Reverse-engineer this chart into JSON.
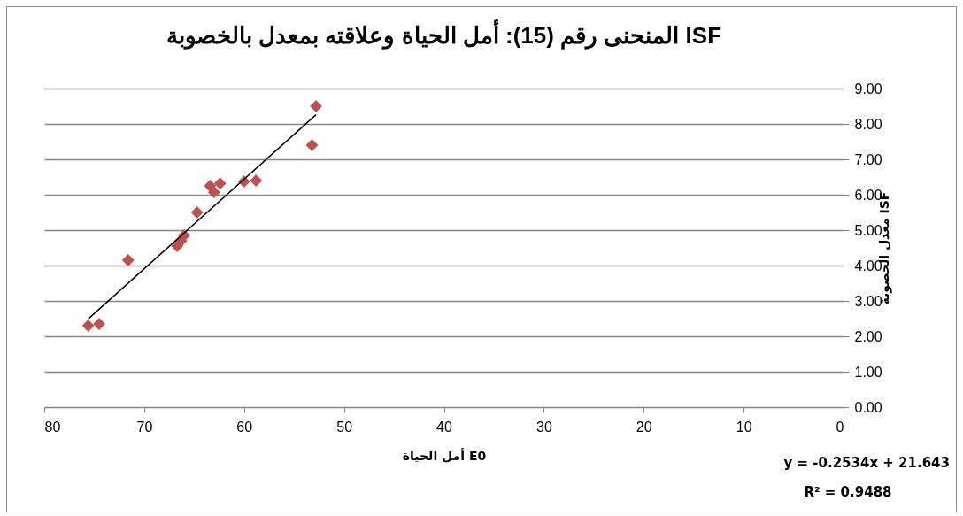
{
  "chart_data": {
    "type": "scatter",
    "title": "المنحنى رقم (15): أمل الحياة وعلاقته بمعدل بالخصوبة ISF",
    "xlabel": "أمل الحياة  E0",
    "ylabel": "معدل الخصوبة ISF",
    "series": [
      {
        "color": "#c0504d",
        "x": [
          75.6,
          74.5,
          71.6,
          66.7,
          66.3,
          66.0,
          64.7,
          63.4,
          63.0,
          62.4,
          60.0,
          58.8,
          53.2,
          52.8
        ],
        "values": [
          2.3,
          2.35,
          4.15,
          4.55,
          4.7,
          4.85,
          5.5,
          6.25,
          6.07,
          6.32,
          6.37,
          6.4,
          7.4,
          8.5
        ]
      },
      {
        "type": "line",
        "color": "#000000",
        "line_style": "solid",
        "marker": "none",
        "x": [
          75.6,
          52.8
        ],
        "values": [
          2.49,
          8.26
        ]
      }
    ],
    "xlim": [
      80,
      0
    ],
    "xticks": [
      80,
      70,
      60,
      50,
      40,
      30,
      20,
      10,
      0
    ],
    "ylim": [
      0,
      9
    ],
    "yticks": [
      {
        "value": 0,
        "label": "0.00"
      },
      {
        "value": 1,
        "label": "1.00"
      },
      {
        "value": 2,
        "label": "2.00"
      },
      {
        "value": 3,
        "label": "3.00"
      },
      {
        "value": 4,
        "label": "4.00"
      },
      {
        "value": 5,
        "label": "5.00"
      },
      {
        "value": 6,
        "label": "6.00"
      },
      {
        "value": 7,
        "label": "7.00"
      },
      {
        "value": 8,
        "label": "8.00"
      },
      {
        "value": 9,
        "label": "9.00"
      }
    ],
    "grid": "y",
    "marker": "diamond",
    "annotations": [
      "y = -0.2534x + 21.643",
      "R² = 0.9488"
    ]
  }
}
